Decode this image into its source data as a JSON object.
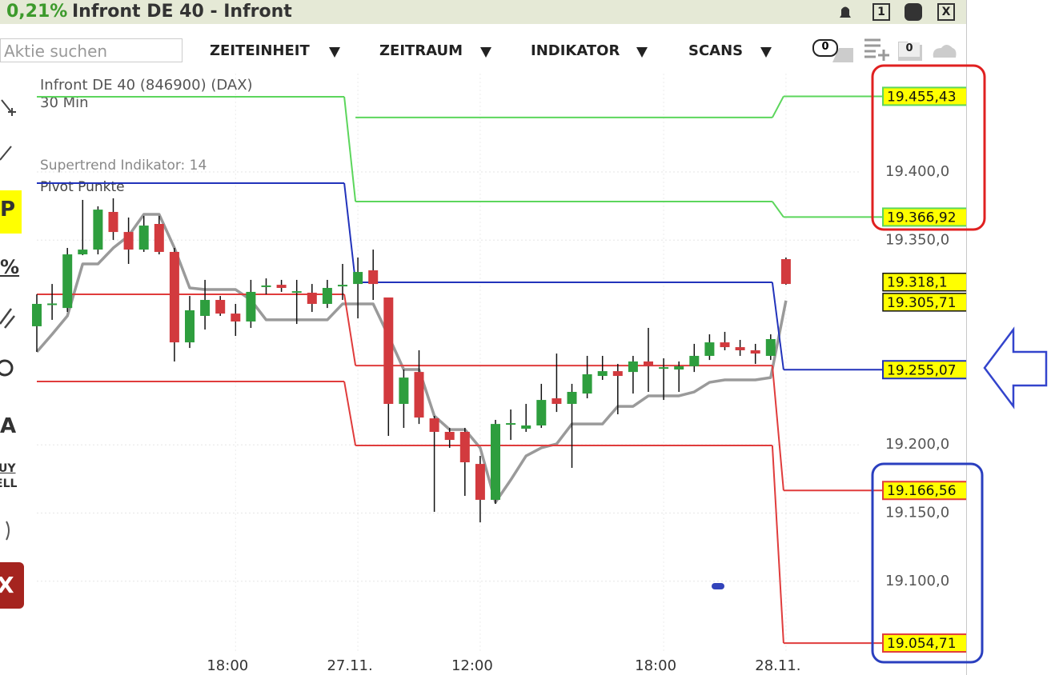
{
  "header": {
    "change": "0,21%",
    "title": "Infront DE 40 - Infront",
    "buttons": [
      "1",
      "X"
    ]
  },
  "toolbar": {
    "search_placeholder": "Aktie suchen",
    "menus": [
      "ZEITEINHEIT",
      "ZEITRAUM",
      "INDIKATOR",
      "SCANS"
    ],
    "badges": [
      "0",
      "0"
    ]
  },
  "sidebar": {
    "tools": [
      "P",
      "%",
      "A",
      "UY",
      "ELL",
      "X"
    ]
  },
  "chart_data": {
    "type": "candlestick",
    "title": "Infront DE 40 (846900) (DAX)",
    "subtitle": "30 Min",
    "categories": [
      null,
      null,
      null,
      null,
      null,
      null,
      null,
      null,
      null,
      null,
      null,
      null,
      null,
      "18:00",
      null,
      null,
      null,
      null,
      null,
      null,
      null,
      "27.11.",
      null,
      null,
      null,
      null,
      null,
      null,
      null,
      "12:00",
      null,
      null,
      null,
      null,
      null,
      null,
      null,
      null,
      null,
      null,
      null,
      "18:00",
      null,
      null,
      null,
      null,
      null,
      null,
      null,
      "28.11."
    ],
    "open": [
      19286.9,
      19303.3,
      19300.3,
      19339.6,
      19343.1,
      19370.7,
      19356.0,
      19343.1,
      19361.9,
      19341.4,
      19275.1,
      19294.5,
      19306.2,
      19296.2,
      19290.4,
      19316.2,
      19317.3,
      19312.1,
      19311.5,
      19303.3,
      19316.8,
      19317.9,
      19327.9,
      19308.0,
      19230.0,
      19253.4,
      19219.4,
      19209.5,
      19209.5,
      19186.0,
      19159.7,
      19215.3,
      19211.8,
      19214.2,
      19234.1,
      19230.0,
      19237.6,
      19250.5,
      19254.0,
      19253.4,
      19261.1,
      19256.4,
      19255.2,
      19257.6,
      19265.2,
      19275.1,
      19271.6,
      19269.3,
      19265.2,
      19336.1
    ],
    "high": [
      19310.3,
      19317.9,
      19344.3,
      19379.5,
      19374.8,
      19380.7,
      19366.6,
      19367.8,
      19367.8,
      19344.3,
      19309.1,
      19320.9,
      19309.1,
      19303.3,
      19320.9,
      19322.0,
      19320.9,
      19320.9,
      19317.9,
      19320.9,
      19332.6,
      19337.3,
      19343.1,
      19308.0,
      19255.2,
      19269.3,
      19221.2,
      19212.4,
      19212.4,
      19191.9,
      19218.3,
      19225.9,
      19230.0,
      19244.7,
      19266.9,
      19244.7,
      19265.2,
      19265.2,
      19259.3,
      19265.2,
      19285.7,
      19263.4,
      19261.1,
      19274.0,
      19281.0,
      19282.8,
      19276.9,
      19274.0,
      19281.0,
      19337.3
    ],
    "low": [
      19268.1,
      19291.6,
      19297.4,
      19339.0,
      19339.6,
      19350.2,
      19332.6,
      19341.4,
      19339.6,
      19261.1,
      19271.0,
      19284.5,
      19294.5,
      19279.8,
      19285.7,
      19310.3,
      19312.1,
      19288.6,
      19297.4,
      19300.3,
      19306.2,
      19292.7,
      19306.2,
      19206.6,
      19212.4,
      19215.3,
      19150.9,
      19197.8,
      19162.6,
      19143.2,
      19156.7,
      19203.6,
      19209.5,
      19212.4,
      19224.1,
      19183.1,
      19234.1,
      19247.6,
      19222.4,
      19237.6,
      19238.8,
      19232.9,
      19238.8,
      19253.4,
      19262.2,
      19269.3,
      19265.2,
      19259.3,
      19262.2,
      19317.3
    ],
    "close": [
      19303.3,
      19303.6,
      19339.6,
      19343.1,
      19372.4,
      19356.0,
      19343.1,
      19360.7,
      19341.4,
      19275.1,
      19298.6,
      19306.2,
      19296.2,
      19290.4,
      19312.1,
      19316.8,
      19315.0,
      19312.6,
      19303.3,
      19315.0,
      19317.3,
      19326.7,
      19317.9,
      19230.0,
      19249.3,
      19220.0,
      19209.5,
      19203.6,
      19187.2,
      19159.7,
      19215.3,
      19215.9,
      19214.2,
      19232.9,
      19230.0,
      19238.8,
      19251.7,
      19254.0,
      19250.5,
      19261.1,
      19257.6,
      19256.9,
      19257.6,
      19265.2,
      19275.1,
      19271.6,
      19269.3,
      19266.9,
      19277.5,
      19317.9
    ],
    "up_color": "#2e9e3e",
    "down_color": "#d23a3e",
    "ylim": [
      19048.3,
      19472.1
    ],
    "yticks": [
      {
        "value": 19400,
        "label": "19.400,0"
      },
      {
        "value": 19350,
        "label": "19.350,0"
      },
      {
        "value": 19200,
        "label": "19.200,0"
      },
      {
        "value": 19150,
        "label": "19.150,0"
      },
      {
        "value": 19100,
        "label": "19.100,0"
      }
    ],
    "grid": true,
    "indicators": [
      {
        "name": "Supertrend Indikator: 14",
        "type": "line",
        "color": "#9a9a9a",
        "values": [
          19268.1,
          19281.0,
          19294.5,
          19332.6,
          19332.6,
          19344.3,
          19353.1,
          19368.9,
          19368.9,
          19344.3,
          19315.0,
          19313.8,
          19313.8,
          19313.8,
          19306.2,
          19291.6,
          19291.6,
          19291.6,
          19291.6,
          19291.6,
          19303.3,
          19303.3,
          19303.3,
          19279.8,
          19255.2,
          19255.2,
          19221.2,
          19211.2,
          19211.2,
          19197.8,
          19157.9,
          19174.3,
          19191.9,
          19197.8,
          19200.7,
          19215.3,
          19215.3,
          19215.3,
          19228.2,
          19228.2,
          19235.9,
          19235.9,
          19235.9,
          19238.8,
          19245.8,
          19247.6,
          19247.6,
          19247.6,
          19249.3,
          19305.71
        ]
      },
      {
        "name": "Pivot Punkte",
        "type": "pivot",
        "colors": [
          "#5cd65c",
          "#5cd65c",
          "#2233bb",
          "#e03c3c",
          "#e03c3c"
        ],
        "days": [
          {
            "start": 0,
            "values": [
              null,
              19455.1,
              19391.8,
              19310.3,
              19246.4
            ]
          },
          {
            "start": 21,
            "values": [
              19439.9,
              19378.3,
              19319.1,
              19258.1,
              19199.5
            ]
          },
          {
            "start": 49,
            "values": [
              19455.43,
              19366.92,
              19255.07,
              19166.56,
              19054.71
            ],
            "value_labels": [
              "19.455,43",
              "19.366,92",
              "19.255,07",
              "19.166,56",
              "19.054,71"
            ]
          }
        ]
      }
    ],
    "price_markers": [
      {
        "value": 19318.1,
        "label": "19.318,1"
      },
      {
        "value": 19305.71,
        "label": "19.305,71"
      }
    ]
  }
}
